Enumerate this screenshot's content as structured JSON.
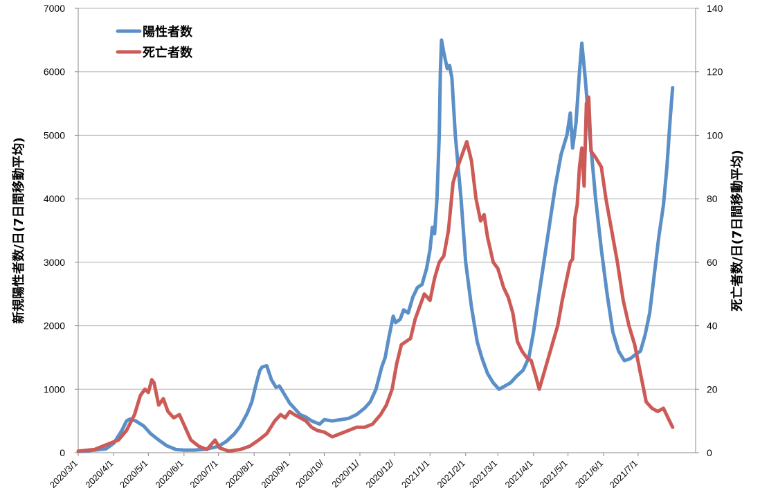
{
  "chart_data": {
    "type": "line",
    "title": "",
    "ylabel_left": "新規陽性者数/日(7日間移動平均)",
    "ylabel_right": "死亡者数/日(7日間移動平均)",
    "ylim_left": [
      0,
      7000
    ],
    "ylim_right": [
      0,
      140
    ],
    "yticks_left": [
      "0",
      "1000",
      "2000",
      "3000",
      "4000",
      "5000",
      "6000",
      "7000"
    ],
    "yticks_right": [
      "0",
      "20",
      "40",
      "60",
      "80",
      "100",
      "120",
      "140"
    ],
    "x_range": [
      "2020-03-01",
      "2021-08-20"
    ],
    "x_tick_labels": [
      "2020/3/1",
      "2020/4/1",
      "2020/5/1",
      "2020/6/1",
      "2020/7/1",
      "2020/8/1",
      "2020/9/1",
      "2020/10/",
      "2020/11/",
      "2020/12/",
      "2021/1/1",
      "2021/2/1",
      "2021/3/1",
      "2021/4/1",
      "2021/5/1",
      "2021/6/1",
      "2021/7/1"
    ],
    "x_tick_dates": [
      "2020-03-01",
      "2020-04-01",
      "2020-05-01",
      "2020-06-01",
      "2020-07-01",
      "2020-08-01",
      "2020-09-01",
      "2020-10-01",
      "2020-11-01",
      "2020-12-01",
      "2021-01-01",
      "2021-02-01",
      "2021-03-01",
      "2021-04-01",
      "2021-05-01",
      "2021-06-01",
      "2021-07-01"
    ],
    "grid": true,
    "legend_position": "top-left",
    "series": [
      {
        "name": "陽性者数",
        "axis": "left",
        "color": "#5b8fc7",
        "points": [
          [
            "2020-03-01",
            20
          ],
          [
            "2020-03-15",
            40
          ],
          [
            "2020-03-25",
            60
          ],
          [
            "2020-04-01",
            150
          ],
          [
            "2020-04-08",
            350
          ],
          [
            "2020-04-12",
            500
          ],
          [
            "2020-04-15",
            530
          ],
          [
            "2020-04-20",
            500
          ],
          [
            "2020-04-27",
            420
          ],
          [
            "2020-05-03",
            300
          ],
          [
            "2020-05-10",
            200
          ],
          [
            "2020-05-17",
            110
          ],
          [
            "2020-05-25",
            50
          ],
          [
            "2020-06-01",
            40
          ],
          [
            "2020-06-10",
            40
          ],
          [
            "2020-06-20",
            55
          ],
          [
            "2020-07-01",
            100
          ],
          [
            "2020-07-08",
            180
          ],
          [
            "2020-07-15",
            300
          ],
          [
            "2020-07-20",
            420
          ],
          [
            "2020-07-26",
            620
          ],
          [
            "2020-07-30",
            800
          ],
          [
            "2020-08-03",
            1100
          ],
          [
            "2020-08-06",
            1300
          ],
          [
            "2020-08-08",
            1350
          ],
          [
            "2020-08-12",
            1370
          ],
          [
            "2020-08-16",
            1150
          ],
          [
            "2020-08-20",
            1030
          ],
          [
            "2020-08-23",
            1050
          ],
          [
            "2020-08-28",
            900
          ],
          [
            "2020-09-01",
            780
          ],
          [
            "2020-09-05",
            700
          ],
          [
            "2020-09-10",
            600
          ],
          [
            "2020-09-15",
            560
          ],
          [
            "2020-09-20",
            500
          ],
          [
            "2020-09-27",
            450
          ],
          [
            "2020-10-01",
            520
          ],
          [
            "2020-10-08",
            500
          ],
          [
            "2020-10-15",
            520
          ],
          [
            "2020-10-22",
            540
          ],
          [
            "2020-10-29",
            600
          ],
          [
            "2020-11-05",
            700
          ],
          [
            "2020-11-10",
            800
          ],
          [
            "2020-11-15",
            1000
          ],
          [
            "2020-11-20",
            1350
          ],
          [
            "2020-11-23",
            1500
          ],
          [
            "2020-11-26",
            1800
          ],
          [
            "2020-11-30",
            2150
          ],
          [
            "2020-12-02",
            2050
          ],
          [
            "2020-12-06",
            2100
          ],
          [
            "2020-12-09",
            2250
          ],
          [
            "2020-12-13",
            2200
          ],
          [
            "2020-12-17",
            2450
          ],
          [
            "2020-12-21",
            2600
          ],
          [
            "2020-12-25",
            2650
          ],
          [
            "2020-12-29",
            2900
          ],
          [
            "2021-01-01",
            3200
          ],
          [
            "2021-01-03",
            3550
          ],
          [
            "2021-01-05",
            3450
          ],
          [
            "2021-01-07",
            4000
          ],
          [
            "2021-01-09",
            5000
          ],
          [
            "2021-01-10",
            6000
          ],
          [
            "2021-01-11",
            6500
          ],
          [
            "2021-01-13",
            6300
          ],
          [
            "2021-01-16",
            6050
          ],
          [
            "2021-01-18",
            6100
          ],
          [
            "2021-01-20",
            5900
          ],
          [
            "2021-01-23",
            5000
          ],
          [
            "2021-01-28",
            4000
          ],
          [
            "2021-02-01",
            3000
          ],
          [
            "2021-02-06",
            2300
          ],
          [
            "2021-02-11",
            1750
          ],
          [
            "2021-02-15",
            1500
          ],
          [
            "2021-02-20",
            1250
          ],
          [
            "2021-02-25",
            1100
          ],
          [
            "2021-03-02",
            1000
          ],
          [
            "2021-03-07",
            1050
          ],
          [
            "2021-03-12",
            1100
          ],
          [
            "2021-03-17",
            1200
          ],
          [
            "2021-03-23",
            1300
          ],
          [
            "2021-03-28",
            1500
          ],
          [
            "2021-04-01",
            1900
          ],
          [
            "2021-04-05",
            2400
          ],
          [
            "2021-04-10",
            3000
          ],
          [
            "2021-04-15",
            3600
          ],
          [
            "2021-04-20",
            4200
          ],
          [
            "2021-04-25",
            4700
          ],
          [
            "2021-04-30",
            5000
          ],
          [
            "2021-05-03",
            5350
          ],
          [
            "2021-05-05",
            4800
          ],
          [
            "2021-05-08",
            5200
          ],
          [
            "2021-05-11",
            6000
          ],
          [
            "2021-05-13",
            6450
          ],
          [
            "2021-05-16",
            5900
          ],
          [
            "2021-05-20",
            5000
          ],
          [
            "2021-05-25",
            4000
          ],
          [
            "2021-05-30",
            3200
          ],
          [
            "2021-06-04",
            2500
          ],
          [
            "2021-06-09",
            1900
          ],
          [
            "2021-06-14",
            1600
          ],
          [
            "2021-06-19",
            1450
          ],
          [
            "2021-06-24",
            1480
          ],
          [
            "2021-06-29",
            1550
          ],
          [
            "2021-07-03",
            1600
          ],
          [
            "2021-07-07",
            1850
          ],
          [
            "2021-07-11",
            2200
          ],
          [
            "2021-07-15",
            2800
          ],
          [
            "2021-07-19",
            3400
          ],
          [
            "2021-07-23",
            3900
          ],
          [
            "2021-07-26",
            4500
          ],
          [
            "2021-07-29",
            5300
          ],
          [
            "2021-07-31",
            5750
          ]
        ]
      },
      {
        "name": "死亡者数",
        "axis": "right",
        "color": "#cc5b57",
        "points": [
          [
            "2020-03-01",
            0.5
          ],
          [
            "2020-03-15",
            1
          ],
          [
            "2020-03-22",
            2
          ],
          [
            "2020-03-29",
            3
          ],
          [
            "2020-04-05",
            4
          ],
          [
            "2020-04-12",
            7
          ],
          [
            "2020-04-19",
            12
          ],
          [
            "2020-04-24",
            18
          ],
          [
            "2020-04-28",
            20
          ],
          [
            "2020-05-01",
            19
          ],
          [
            "2020-05-04",
            23
          ],
          [
            "2020-05-06",
            22
          ],
          [
            "2020-05-10",
            15
          ],
          [
            "2020-05-14",
            17
          ],
          [
            "2020-05-18",
            13
          ],
          [
            "2020-05-23",
            11
          ],
          [
            "2020-05-28",
            12
          ],
          [
            "2020-06-02",
            8
          ],
          [
            "2020-06-07",
            4
          ],
          [
            "2020-06-14",
            2
          ],
          [
            "2020-06-21",
            1
          ],
          [
            "2020-06-28",
            4
          ],
          [
            "2020-07-02",
            1.5
          ],
          [
            "2020-07-10",
            0.5
          ],
          [
            "2020-07-20",
            1
          ],
          [
            "2020-07-28",
            2
          ],
          [
            "2020-08-05",
            4
          ],
          [
            "2020-08-12",
            6
          ],
          [
            "2020-08-19",
            10
          ],
          [
            "2020-08-24",
            12
          ],
          [
            "2020-08-28",
            11
          ],
          [
            "2020-09-01",
            13
          ],
          [
            "2020-09-05",
            12
          ],
          [
            "2020-09-10",
            11
          ],
          [
            "2020-09-15",
            10
          ],
          [
            "2020-09-20",
            8
          ],
          [
            "2020-09-25",
            7
          ],
          [
            "2020-10-01",
            6.5
          ],
          [
            "2020-10-08",
            5
          ],
          [
            "2020-10-15",
            6
          ],
          [
            "2020-10-22",
            7
          ],
          [
            "2020-10-29",
            8
          ],
          [
            "2020-11-05",
            8
          ],
          [
            "2020-11-12",
            9
          ],
          [
            "2020-11-19",
            12
          ],
          [
            "2020-11-24",
            15
          ],
          [
            "2020-11-29",
            20
          ],
          [
            "2020-12-03",
            28
          ],
          [
            "2020-12-07",
            34
          ],
          [
            "2020-12-11",
            35
          ],
          [
            "2020-12-15",
            36
          ],
          [
            "2020-12-19",
            42
          ],
          [
            "2020-12-23",
            46
          ],
          [
            "2020-12-27",
            50
          ],
          [
            "2021-01-01",
            48
          ],
          [
            "2021-01-05",
            55
          ],
          [
            "2021-01-09",
            60
          ],
          [
            "2021-01-13",
            62
          ],
          [
            "2021-01-17",
            70
          ],
          [
            "2021-01-21",
            85
          ],
          [
            "2021-01-25",
            90
          ],
          [
            "2021-01-29",
            94
          ],
          [
            "2021-02-02",
            98
          ],
          [
            "2021-02-06",
            92
          ],
          [
            "2021-02-10",
            80
          ],
          [
            "2021-02-14",
            73
          ],
          [
            "2021-02-17",
            75
          ],
          [
            "2021-02-20",
            68
          ],
          [
            "2021-02-25",
            60
          ],
          [
            "2021-03-01",
            58
          ],
          [
            "2021-03-06",
            52
          ],
          [
            "2021-03-10",
            49
          ],
          [
            "2021-03-14",
            44
          ],
          [
            "2021-03-18",
            35
          ],
          [
            "2021-03-22",
            32
          ],
          [
            "2021-03-26",
            30
          ],
          [
            "2021-03-30",
            29
          ],
          [
            "2021-04-03",
            24
          ],
          [
            "2021-04-06",
            20
          ],
          [
            "2021-04-10",
            25
          ],
          [
            "2021-04-14",
            30
          ],
          [
            "2021-04-18",
            35
          ],
          [
            "2021-04-22",
            40
          ],
          [
            "2021-04-26",
            48
          ],
          [
            "2021-04-30",
            55
          ],
          [
            "2021-05-03",
            60
          ],
          [
            "2021-05-05",
            61
          ],
          [
            "2021-05-07",
            74
          ],
          [
            "2021-05-09",
            78
          ],
          [
            "2021-05-11",
            90
          ],
          [
            "2021-05-13",
            96
          ],
          [
            "2021-05-15",
            84
          ],
          [
            "2021-05-17",
            110
          ],
          [
            "2021-05-19",
            112
          ],
          [
            "2021-05-21",
            95
          ],
          [
            "2021-05-25",
            93
          ],
          [
            "2021-05-30",
            90
          ],
          [
            "2021-06-03",
            80
          ],
          [
            "2021-06-08",
            70
          ],
          [
            "2021-06-13",
            60
          ],
          [
            "2021-06-18",
            48
          ],
          [
            "2021-06-23",
            40
          ],
          [
            "2021-06-28",
            34
          ],
          [
            "2021-07-03",
            25
          ],
          [
            "2021-07-08",
            16
          ],
          [
            "2021-07-13",
            14
          ],
          [
            "2021-07-18",
            13
          ],
          [
            "2021-07-23",
            14
          ],
          [
            "2021-07-27",
            11
          ],
          [
            "2021-07-31",
            8
          ]
        ]
      }
    ]
  }
}
